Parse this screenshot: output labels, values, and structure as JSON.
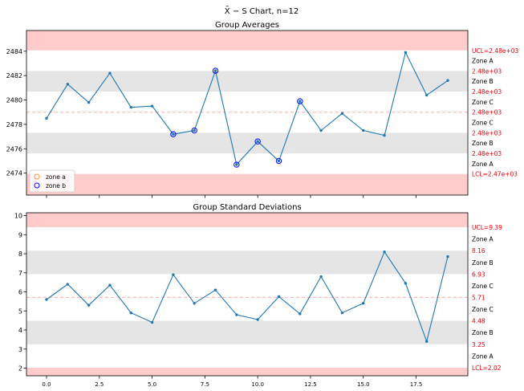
{
  "figure": {
    "suptitle": "X̄ − S Chart, n=12"
  },
  "colors": {
    "line": "#1f77b4",
    "limit_text": "#e8000b",
    "outer_band": "#ffcccc",
    "mid_band": "#e5e5e5",
    "center_line": "#ffaaaa",
    "zone_a_marker": "#ff9933",
    "zone_b_marker": "#0000ff"
  },
  "chart_data": [
    {
      "type": "line",
      "title": "Group Averages",
      "x": [
        0,
        1,
        2,
        3,
        4,
        5,
        6,
        7,
        8,
        9,
        10,
        11,
        12,
        13,
        14,
        15,
        16,
        17,
        18,
        19
      ],
      "series": [
        {
          "values": [
            2478.5,
            2481.3,
            2479.8,
            2482.2,
            2479.4,
            2479.5,
            2477.2,
            2477.5,
            2482.4,
            2474.7,
            2476.6,
            2475.0,
            2479.9,
            2477.5,
            2478.9,
            2477.5,
            2477.1,
            2483.9,
            2480.4,
            2481.6
          ]
        }
      ],
      "zone_a_points": [],
      "zone_b_points": [
        6,
        7,
        8,
        9,
        10,
        11,
        12
      ],
      "limits": {
        "ucl": 2484.07,
        "lcl": 2473.93,
        "cl": 2479.0,
        "zone_lines": [
          2482.38,
          2480.69,
          2477.31,
          2475.62
        ]
      },
      "ylim": [
        2472.2,
        2485.7
      ],
      "yticks": [
        2474,
        2476,
        2478,
        2480,
        2482,
        2484
      ],
      "xlim": [
        -0.95,
        19.95
      ],
      "xticks": [
        0.0,
        2.5,
        5.0,
        7.5,
        10.0,
        12.5,
        15.0,
        17.5
      ],
      "show_xtick_labels": false,
      "right_labels": [
        "UCL=2.48e+03",
        "Zone A",
        "2.48e+03",
        "Zone B",
        "2.48e+03",
        "Zone C",
        "2.48e+03",
        "Zone C",
        "2.48e+03",
        "Zone B",
        "2.48e+03",
        "Zone A",
        "LCL=2.47e+03"
      ],
      "legend": {
        "position": "lower-left",
        "entries": [
          "zone a",
          "zone b"
        ]
      }
    },
    {
      "type": "line",
      "title": "Group Standard Deviations",
      "x": [
        0,
        1,
        2,
        3,
        4,
        5,
        6,
        7,
        8,
        9,
        10,
        11,
        12,
        13,
        14,
        15,
        16,
        17,
        18,
        19
      ],
      "series": [
        {
          "values": [
            5.6,
            6.4,
            5.3,
            6.35,
            4.9,
            4.4,
            6.9,
            5.4,
            6.1,
            4.8,
            4.55,
            5.75,
            4.85,
            6.8,
            4.9,
            5.4,
            8.1,
            6.45,
            3.4,
            7.85
          ]
        }
      ],
      "limits": {
        "ucl": 9.39,
        "lcl": 2.02,
        "cl": 5.71,
        "zone_lines": [
          8.16,
          6.93,
          4.48,
          3.25
        ]
      },
      "ylim": [
        1.6,
        10.15
      ],
      "yticks": [
        2,
        3,
        4,
        5,
        6,
        7,
        8,
        9,
        10
      ],
      "xlim": [
        -0.95,
        19.95
      ],
      "xticks": [
        0.0,
        2.5,
        5.0,
        7.5,
        10.0,
        12.5,
        15.0,
        17.5
      ],
      "xtick_labels": [
        "0.0",
        "2.5",
        "5.0",
        "7.5",
        "10.0",
        "12.5",
        "15.0",
        "17.5"
      ],
      "show_xtick_labels": true,
      "right_labels": [
        "UCL=9.39",
        "Zone A",
        "8.16",
        "Zone B",
        "6.93",
        "Zone C",
        "5.71",
        "Zone C",
        "4.48",
        "Zone B",
        "3.25",
        "Zone A",
        "LCL=2.02"
      ]
    }
  ]
}
